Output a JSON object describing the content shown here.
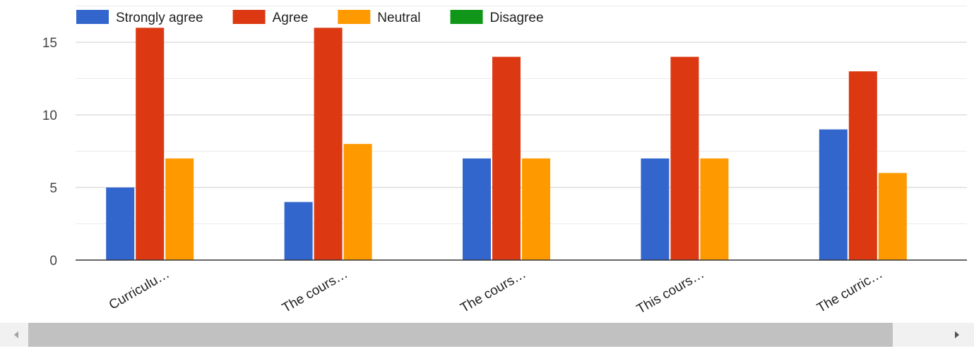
{
  "chart_data": {
    "type": "bar",
    "categories": [
      "Curriculu…",
      "The cours…",
      "The cours…",
      "This cours…",
      "The curric…"
    ],
    "series": [
      {
        "name": "Strongly agree",
        "color": "#3366cc",
        "values": [
          5,
          4,
          7,
          7,
          9
        ]
      },
      {
        "name": "Agree",
        "color": "#dc3912",
        "values": [
          16,
          16,
          14,
          14,
          13
        ]
      },
      {
        "name": "Neutral",
        "color": "#ff9900",
        "values": [
          7,
          8,
          7,
          7,
          6
        ]
      },
      {
        "name": "Disagree",
        "color": "#109618",
        "values": [
          0,
          0,
          0,
          0,
          0
        ]
      }
    ],
    "yticks": [
      0,
      5,
      10,
      15
    ],
    "ylim": [
      0,
      17.5
    ],
    "grid": true,
    "legend_position": "top-left"
  },
  "scrollbar": {
    "left_icon": "left-arrow-icon",
    "right_icon": "right-arrow-icon"
  }
}
